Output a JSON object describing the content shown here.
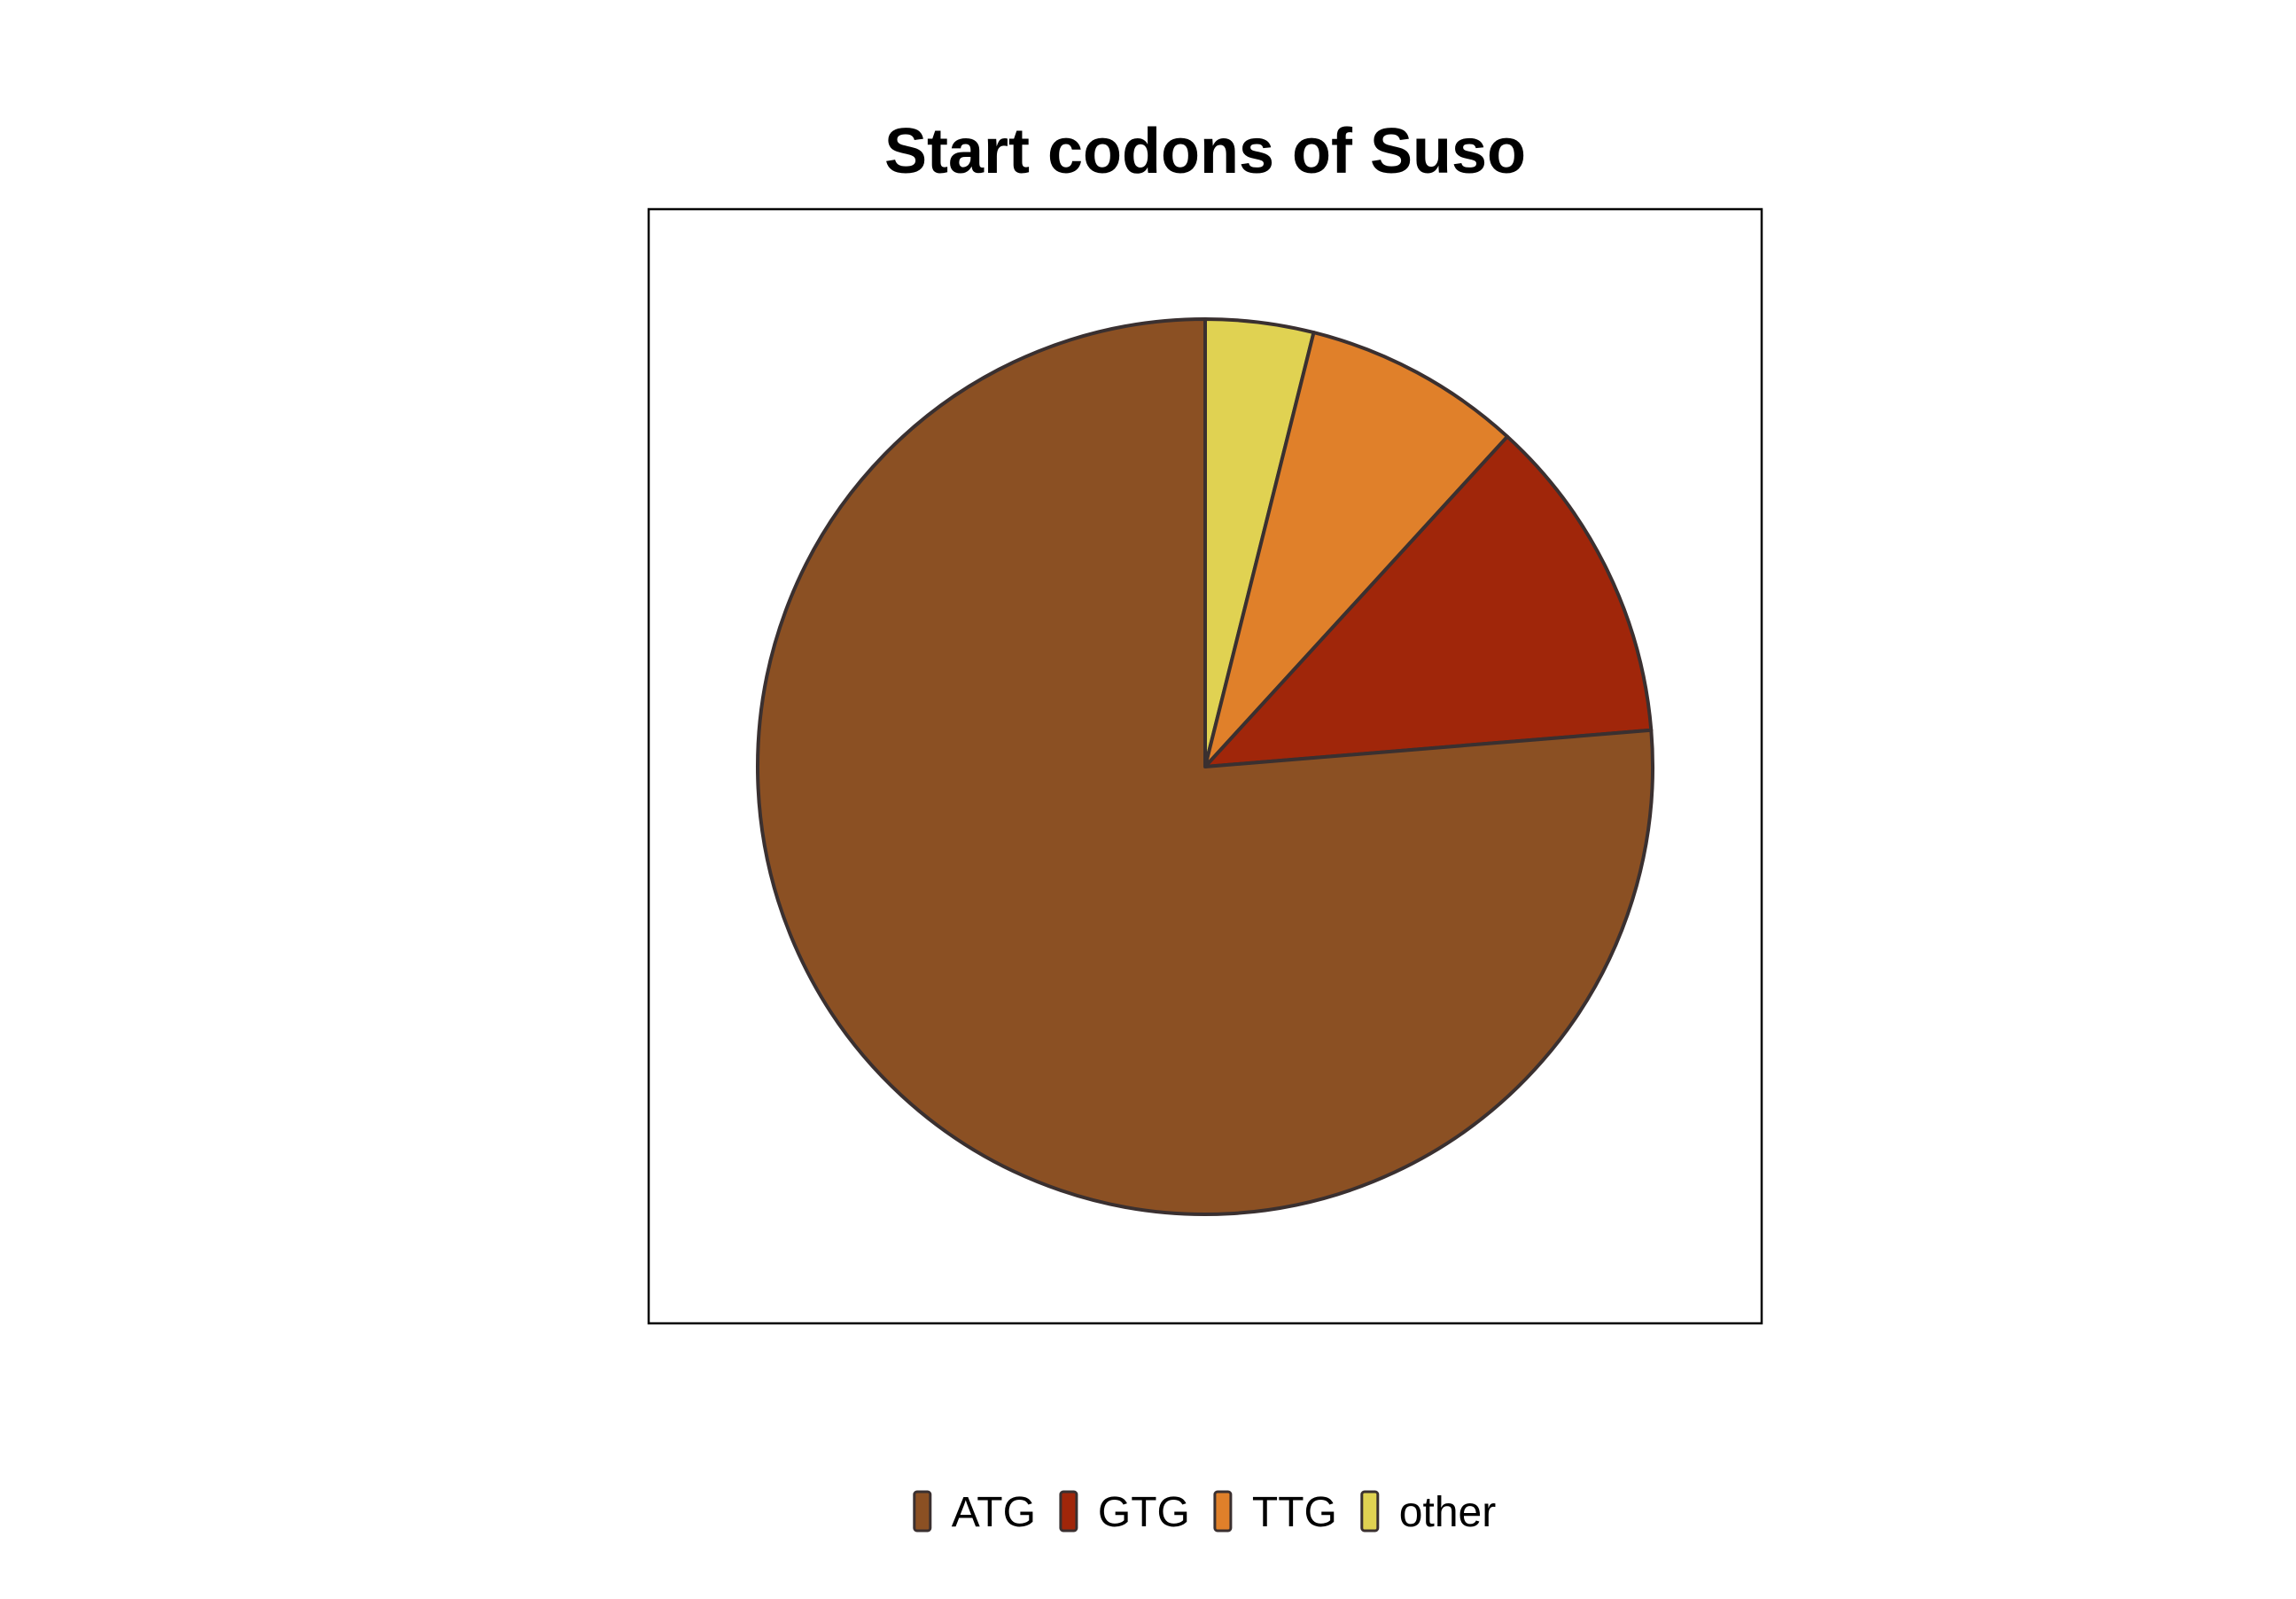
{
  "chart_data": {
    "type": "pie",
    "title": "Start codons of Suso",
    "categories": [
      "ATG",
      "GTG",
      "TTG",
      "other"
    ],
    "values": [
      76.3,
      11.9,
      7.9,
      3.9
    ],
    "colors": [
      "#8B5023",
      "#A0260A",
      "#E0802A",
      "#E0D252"
    ],
    "slice_border_color": "#3a3030",
    "start_angle_deg": 0,
    "direction": "clockwise-from-top, drawn in reverse category order",
    "legend": {
      "position": "bottom",
      "entries": [
        "ATG",
        "GTG",
        "TTG",
        "other"
      ]
    },
    "frame": true
  }
}
